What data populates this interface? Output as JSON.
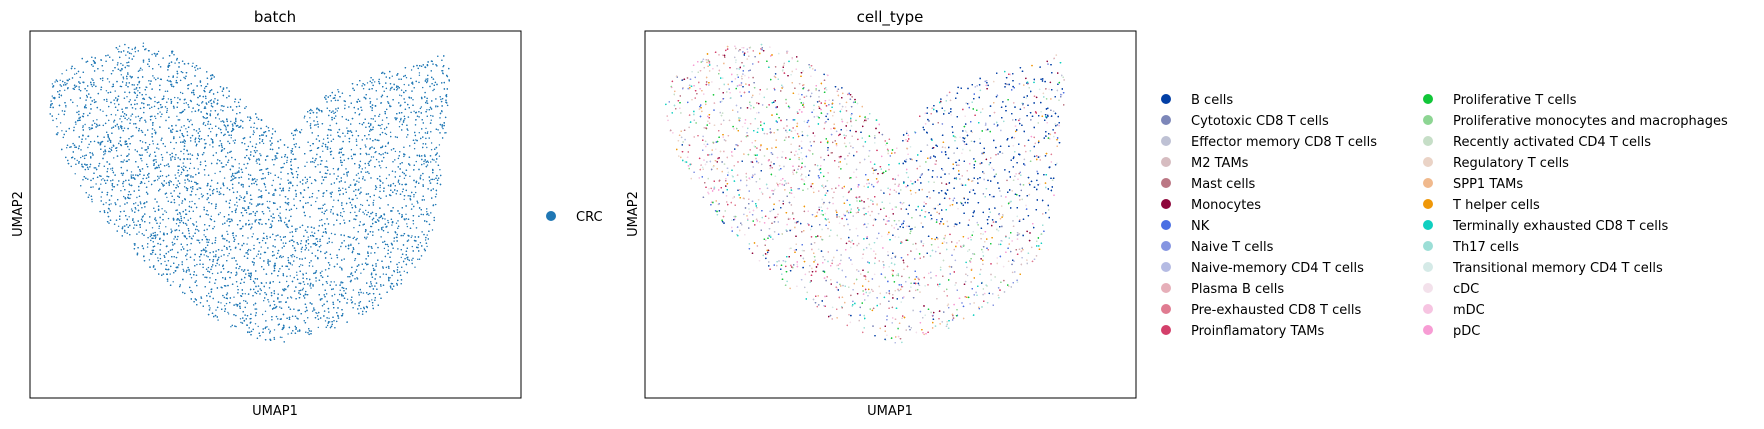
{
  "chart_data": [
    {
      "type": "scatter",
      "title": "batch",
      "xlabel": "UMAP1",
      "ylabel": "UMAP2",
      "grid": false,
      "axis_ticks": false,
      "legend_position": "right",
      "series": [
        {
          "name": "CRC",
          "color": "#1f77b4"
        }
      ]
    },
    {
      "type": "scatter",
      "title": "cell_type",
      "xlabel": "UMAP1",
      "ylabel": "UMAP2",
      "grid": false,
      "axis_ticks": false,
      "legend_position": "right",
      "legend_columns": 2,
      "series": [
        {
          "name": "B cells",
          "color": "#023fa5"
        },
        {
          "name": "Cytotoxic CD8 T cells",
          "color": "#7d87b9"
        },
        {
          "name": "Effector memory CD8 T cells",
          "color": "#bec1d4"
        },
        {
          "name": "M2 TAMs",
          "color": "#d6bcc0"
        },
        {
          "name": "Mast cells",
          "color": "#bb7784"
        },
        {
          "name": "Monocytes",
          "color": "#8e063b"
        },
        {
          "name": "NK",
          "color": "#4a6fe3"
        },
        {
          "name": "Naive T cells",
          "color": "#8595e1"
        },
        {
          "name": "Naive-memory CD4 T cells",
          "color": "#b5bbe3"
        },
        {
          "name": "Plasma B cells",
          "color": "#e6afb9"
        },
        {
          "name": "Pre-exhausted CD8 T cells",
          "color": "#e07b91"
        },
        {
          "name": "Proinflamatory TAMs",
          "color": "#d33f6a"
        },
        {
          "name": "Proliferative T cells",
          "color": "#11c638"
        },
        {
          "name": "Proliferative monocytes and macrophages",
          "color": "#8dd593"
        },
        {
          "name": "Recently activated CD4 T cells",
          "color": "#c6dec7"
        },
        {
          "name": "Regulatory T cells",
          "color": "#ead3c6"
        },
        {
          "name": "SPP1 TAMs",
          "color": "#f0b98d"
        },
        {
          "name": "T helper cells",
          "color": "#ef9708"
        },
        {
          "name": "Terminally exhausted CD8 T cells",
          "color": "#0fcfc0"
        },
        {
          "name": "Th17 cells",
          "color": "#9cded6"
        },
        {
          "name": "Transitional memory CD4 T cells",
          "color": "#d5eae7"
        },
        {
          "name": "cDC",
          "color": "#f3e1eb"
        },
        {
          "name": "mDC",
          "color": "#f6c4e1"
        },
        {
          "name": "pDC",
          "color": "#f79cd4"
        }
      ]
    }
  ]
}
